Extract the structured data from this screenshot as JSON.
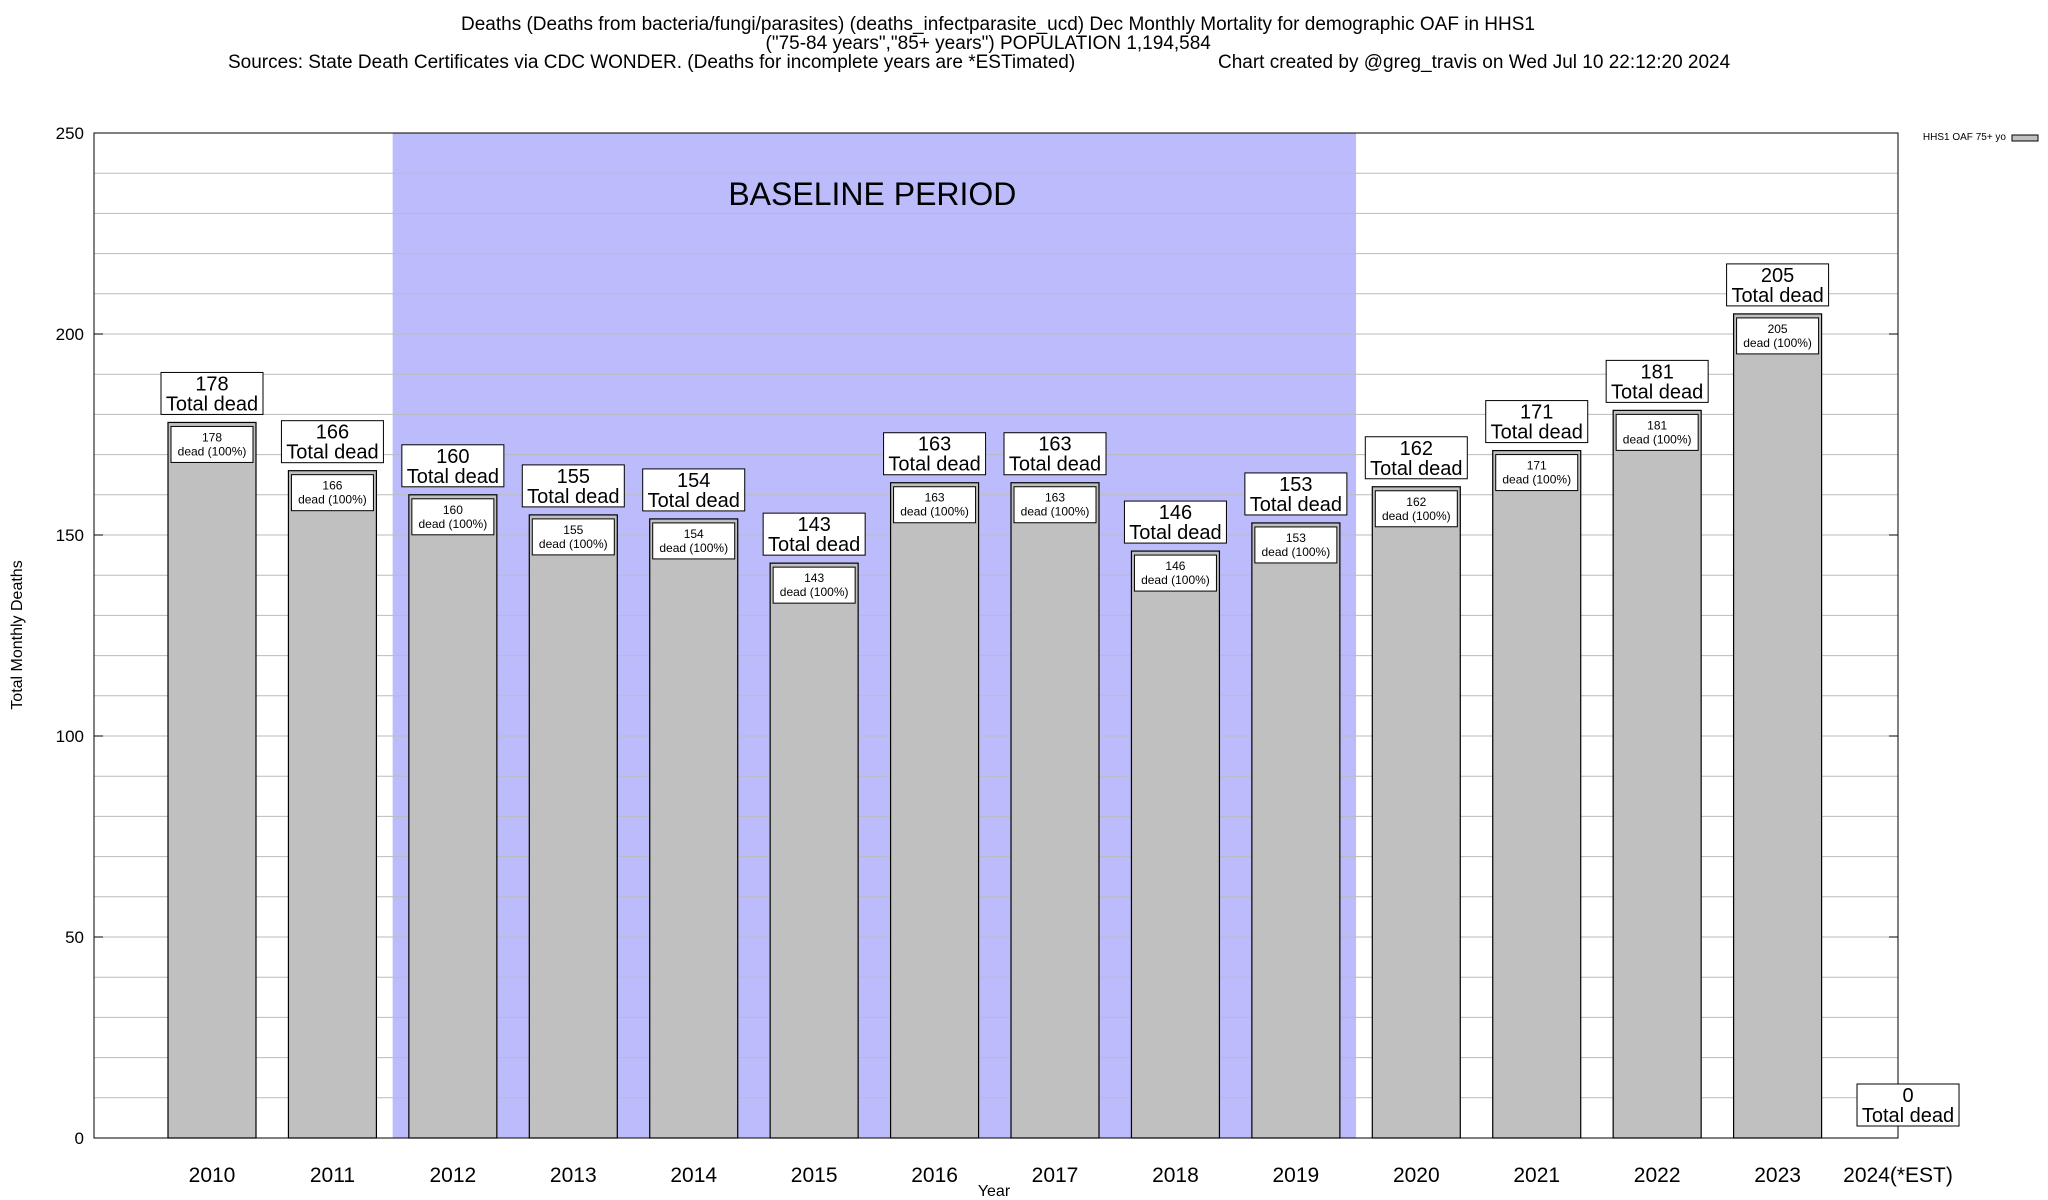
{
  "title": {
    "line1": "Deaths (Deaths from bacteria/fungi/parasites) (deaths_infectparasite_ucd) Dec Monthly Mortality for demographic OAF in HHS1",
    "line2": "(\"75-84 years\",\"85+ years\") POPULATION 1,194,584",
    "line3_left": "Sources: State Death Certificates via CDC WONDER. (Deaths for incomplete years are *ESTimated)",
    "line3_right": "Chart created by @greg_travis on Wed Jul 10 22:12:20 2024"
  },
  "chart_data": {
    "type": "bar",
    "xlabel": "Year",
    "ylabel": "Total Monthly Deaths",
    "ylim": [
      0,
      250
    ],
    "yticks": [
      0,
      50,
      100,
      150,
      200,
      250
    ],
    "y_minor_step": 10,
    "grid": true,
    "legend": {
      "placement": "top-right",
      "entries": [
        "HHS1 OAF 75+ yo"
      ]
    },
    "categories": [
      "2010",
      "2011",
      "2012",
      "2013",
      "2014",
      "2015",
      "2016",
      "2017",
      "2018",
      "2019",
      "2020",
      "2021",
      "2022",
      "2023",
      "2024(*EST)"
    ],
    "series": [
      {
        "name": "HHS1 OAF 75+ yo",
        "values": [
          178,
          166,
          160,
          155,
          154,
          143,
          163,
          163,
          146,
          153,
          162,
          171,
          181,
          205,
          0
        ],
        "color": "#c0c0c0"
      }
    ],
    "total_label_suffix": "Total dead",
    "inner_label_suffix": "dead (100%)",
    "shaded_region": {
      "label": "BASELINE PERIOD",
      "from_category": "2012",
      "to_category": "2019",
      "color": "#bcbcfc"
    }
  }
}
